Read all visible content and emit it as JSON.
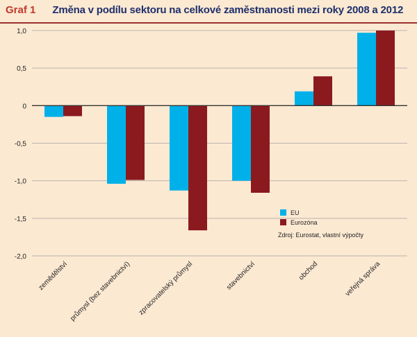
{
  "header": {
    "graf_label": "Graf 1",
    "title": "Změna v podílu sektoru na celkové zaměstnanosti mezi roky 2008 a 2012"
  },
  "source_note": "Zdroj: Eurostat, vlastní výpočty",
  "colors": {
    "background": "#fce9d2",
    "eu": "#00b0e8",
    "eurozone": "#8b1a1f",
    "title_label": "#c0392b",
    "title_text": "#1d2f6b"
  },
  "chart_data": {
    "type": "bar",
    "title": "Změna v podílu sektoru na celkové zaměstnanosti mezi roky 2008 a 2012",
    "categories": [
      "zemědělství",
      "průmysl (bez stavebnictví)",
      "zpracovatelský průmysl",
      "stavebnictví",
      "obchod",
      "veřejná správa"
    ],
    "series": [
      {
        "name": "EU",
        "color": "#00b0e8",
        "values": [
          -0.15,
          -1.04,
          -1.13,
          -1.0,
          0.19,
          0.97
        ]
      },
      {
        "name": "Eurozóna",
        "color": "#8b1a1f",
        "values": [
          -0.14,
          -0.99,
          -1.66,
          -1.16,
          0.39,
          1.0
        ]
      }
    ],
    "ylim": [
      -2.0,
      1.0
    ],
    "yticks": [
      "1,0",
      "0,5",
      "0",
      "-0,5",
      "-1,0",
      "-1,5",
      "-2,0"
    ],
    "ytick_values": [
      1.0,
      0.5,
      0,
      -0.5,
      -1.0,
      -1.5,
      -2.0
    ],
    "grid": true,
    "legend_position": "bottom-right",
    "xlabel": "",
    "ylabel": ""
  }
}
